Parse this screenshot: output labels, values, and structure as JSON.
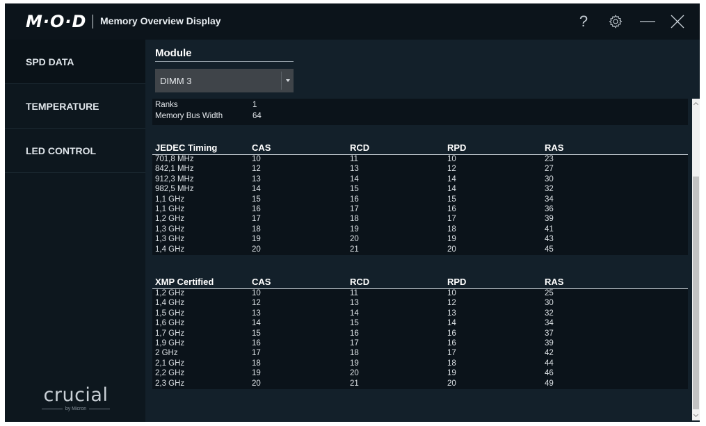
{
  "window": {
    "logo": "M·O·D",
    "title": "Memory Overview Display",
    "help_glyph": "?",
    "icons": [
      "gear-icon",
      "minimize-icon",
      "close-icon"
    ]
  },
  "sidebar": {
    "items": [
      {
        "label": "SPD DATA",
        "active": true
      },
      {
        "label": "TEMPERATURE",
        "active": false
      },
      {
        "label": "LED CONTROL",
        "active": false
      }
    ],
    "brand": {
      "name": "crucial",
      "sub": "by Micron"
    }
  },
  "module": {
    "label": "Module",
    "selected": "DIMM 3"
  },
  "info": {
    "ranks_label": "Ranks",
    "ranks_value": "1",
    "bus_label": "Memory Bus Width",
    "bus_value": "64"
  },
  "jedec": {
    "headers": [
      "JEDEC Timing",
      "CAS",
      "RCD",
      "RPD",
      "RAS"
    ],
    "rows": [
      [
        "701,8 MHz",
        "10",
        "11",
        "10",
        "23"
      ],
      [
        "842,1 MHz",
        "12",
        "13",
        "12",
        "27"
      ],
      [
        "912,3 MHz",
        "13",
        "14",
        "14",
        "30"
      ],
      [
        "982,5 MHz",
        "14",
        "15",
        "14",
        "32"
      ],
      [
        "1,1 GHz",
        "15",
        "16",
        "15",
        "34"
      ],
      [
        "1,1 GHz",
        "16",
        "17",
        "16",
        "36"
      ],
      [
        "1,2 GHz",
        "17",
        "18",
        "17",
        "39"
      ],
      [
        "1,3 GHz",
        "18",
        "19",
        "18",
        "41"
      ],
      [
        "1,3 GHz",
        "19",
        "20",
        "19",
        "43"
      ],
      [
        "1,4 GHz",
        "20",
        "21",
        "20",
        "45"
      ]
    ]
  },
  "xmp": {
    "headers": [
      "XMP Certified",
      "CAS",
      "RCD",
      "RPD",
      "RAS"
    ],
    "rows": [
      [
        "1,2 GHz",
        "10",
        "11",
        "10",
        "25"
      ],
      [
        "1,4 GHz",
        "12",
        "13",
        "12",
        "30"
      ],
      [
        "1,5 GHz",
        "13",
        "14",
        "13",
        "32"
      ],
      [
        "1,6 GHz",
        "14",
        "15",
        "14",
        "34"
      ],
      [
        "1,7 GHz",
        "15",
        "16",
        "16",
        "37"
      ],
      [
        "1,9 GHz",
        "16",
        "17",
        "16",
        "39"
      ],
      [
        "2 GHz",
        "17",
        "18",
        "17",
        "42"
      ],
      [
        "2,1 GHz",
        "18",
        "19",
        "18",
        "44"
      ],
      [
        "2,2 GHz",
        "19",
        "20",
        "19",
        "46"
      ],
      [
        "2,3 GHz",
        "20",
        "21",
        "20",
        "49"
      ]
    ]
  }
}
